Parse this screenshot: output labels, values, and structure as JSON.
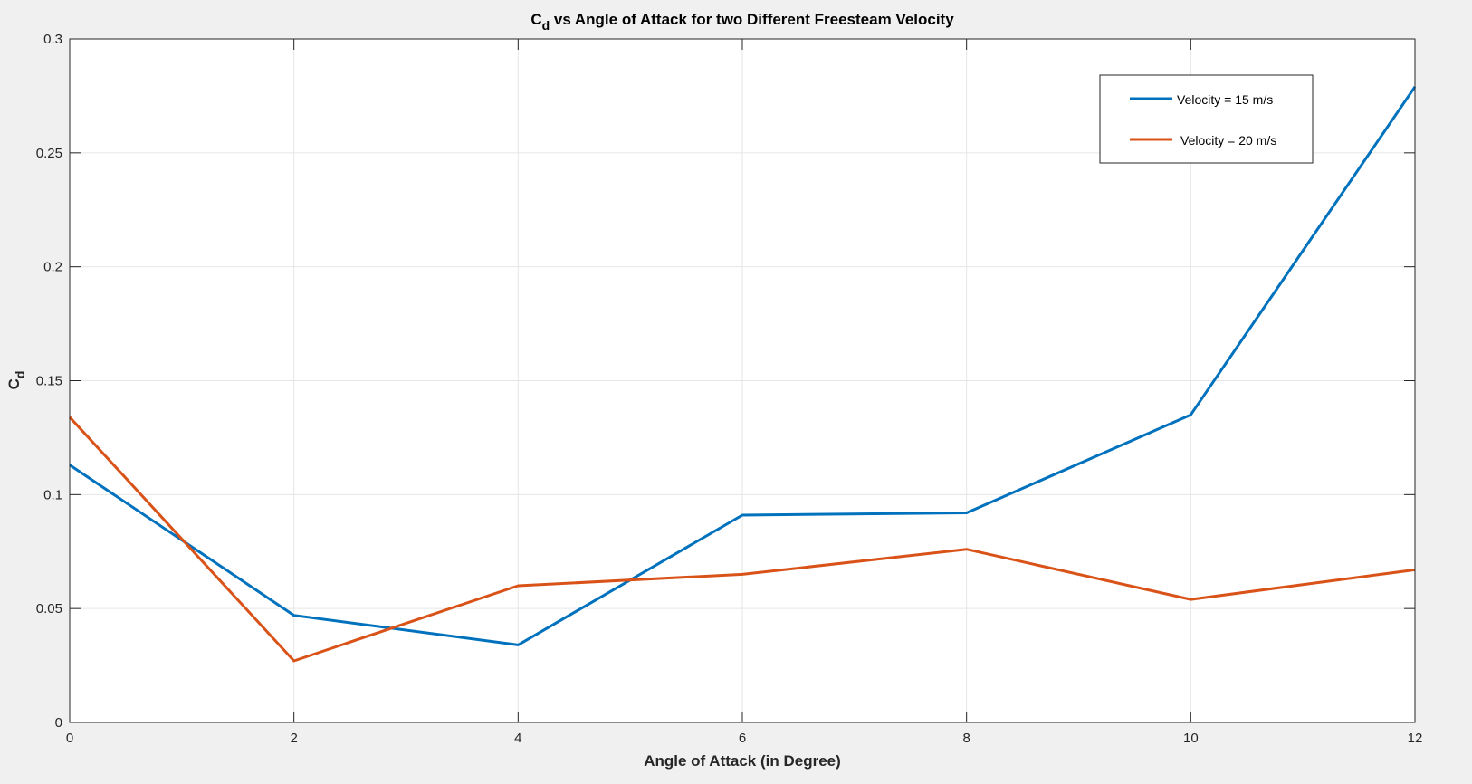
{
  "chart_data": {
    "type": "line",
    "title": {
      "main": "C",
      "sub": "d",
      "rest": " vs Angle of Attack for two Different Freesteam Velocity"
    },
    "xlabel": "Angle of Attack (in Degree)",
    "ylabel": {
      "main": "C",
      "sub": "d"
    },
    "x": [
      0,
      2,
      4,
      6,
      8,
      10,
      12
    ],
    "xlim": [
      0,
      12
    ],
    "ylim": [
      0,
      0.3
    ],
    "xticks": [
      0,
      2,
      4,
      6,
      8,
      10,
      12
    ],
    "yticks": [
      0,
      0.05,
      0.1,
      0.15,
      0.2,
      0.25,
      0.3
    ],
    "xtick_labels": [
      "0",
      "2",
      "4",
      "6",
      "8",
      "10",
      "12"
    ],
    "ytick_labels": [
      "0",
      "0.05",
      "0.1",
      "0.15",
      "0.2",
      "0.25",
      "0.3"
    ],
    "grid": true,
    "legend_position": "top-right",
    "series": [
      {
        "name": "Velocity = 15 m/s",
        "color": "#0072BD",
        "values": [
          0.113,
          0.047,
          0.034,
          0.091,
          0.092,
          0.135,
          0.279
        ]
      },
      {
        "name": "Velocity = 20 m/s",
        "color": "#D95319",
        "values": [
          0.134,
          0.027,
          0.06,
          0.065,
          0.076,
          0.054,
          0.067
        ]
      }
    ]
  }
}
